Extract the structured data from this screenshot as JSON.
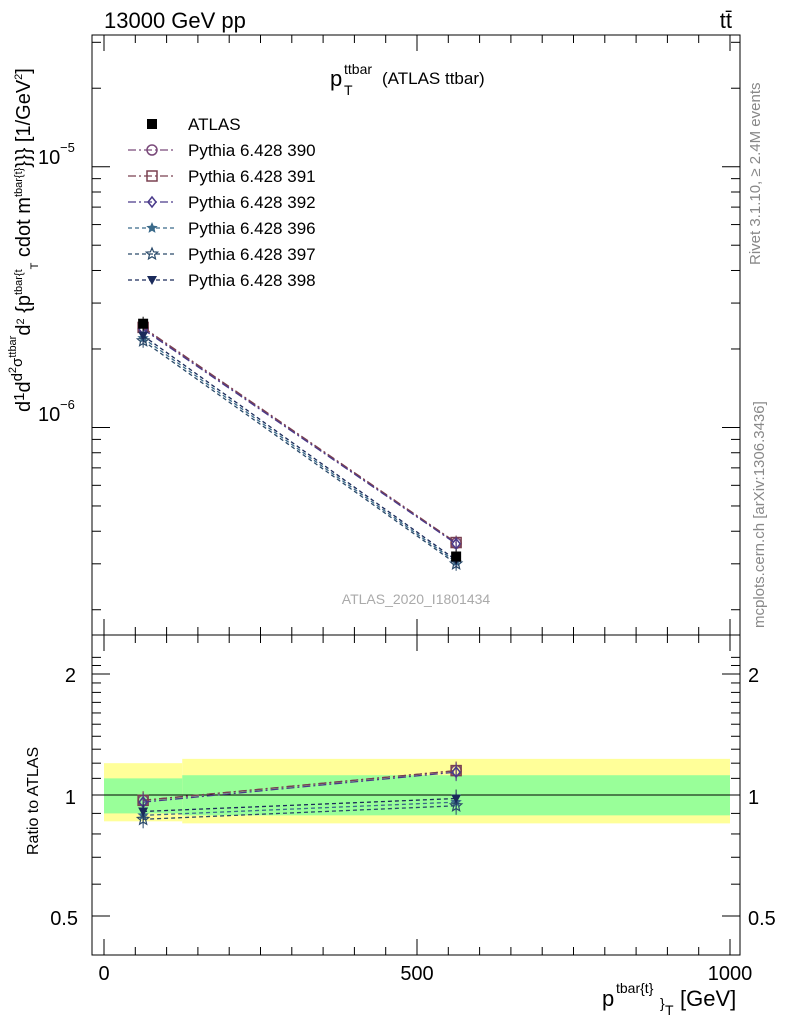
{
  "header": {
    "left": "13000 GeV pp",
    "right": "tt̄"
  },
  "side_labels": {
    "rivet": "Rivet 3.1.10, ≥ 2.4M events",
    "mcplots": "mcplots.cern.ch [arXiv:1306.3436]"
  },
  "main_plot": {
    "title_main": "p",
    "title_sup": "ttbar",
    "title_sub": "T",
    "title_rest": "(ATLAS ttbar)",
    "watermark": "ATLAS_2020_I1801434",
    "ylabel_text": "d1/σ d d²σ^ttbar / d² {p^tbar{t}_T cdot m^tbar{t}}} [1/GeV²]",
    "ytick_labels": [
      {
        "base": "10",
        "exp": "−5",
        "value": 1e-05
      },
      {
        "base": "10",
        "exp": "−6",
        "value": 1e-06
      }
    ]
  },
  "ratio_plot": {
    "ylabel": "Ratio to ATLAS",
    "ytick_labels": [
      "2",
      "1",
      "0.5"
    ]
  },
  "xaxis": {
    "tick_labels": [
      "0",
      "500",
      "1000"
    ],
    "label_main": "p",
    "label_sup": "tbar{t}",
    "label_sub": "}",
    "label_subsub": "T",
    "label_unit": "[GeV]"
  },
  "legend": [
    {
      "name": "ATLAS",
      "marker": "square-filled",
      "color": "#000000",
      "dash": ""
    },
    {
      "name": "Pythia 6.428 390",
      "marker": "circle-open",
      "color": "#7a4a7a",
      "dash": "8,3,2,3"
    },
    {
      "name": "Pythia 6.428 391",
      "marker": "square-open",
      "color": "#7a4050",
      "dash": "8,3,2,3"
    },
    {
      "name": "Pythia 6.428 392",
      "marker": "diamond-open",
      "color": "#4a3a8a",
      "dash": "8,3,2,3"
    },
    {
      "name": "Pythia 6.428 396",
      "marker": "star-filled",
      "color": "#3a6a8a",
      "dash": "4,3"
    },
    {
      "name": "Pythia 6.428 397",
      "marker": "star-open",
      "color": "#2a4a6a",
      "dash": "4,3"
    },
    {
      "name": "Pythia 6.428 398",
      "marker": "triangle-down-filled",
      "color": "#1a2a5a",
      "dash": "4,3"
    }
  ],
  "chart_data": {
    "type": "line",
    "x_scale": "linear",
    "xlim": [
      -20,
      1000
    ],
    "main_yscale": "log",
    "main_ylim": [
      1.6e-07,
      3.2e-05
    ],
    "ratio_ylim": [
      0.4,
      2.3
    ],
    "x": [
      62.5,
      562.5
    ],
    "bin_edges": [
      0,
      125,
      1000
    ],
    "series": [
      {
        "name": "ATLAS",
        "values": [
          2.5e-06,
          3.2e-07
        ],
        "ratio": [
          1.0,
          1.0
        ]
      },
      {
        "name": "Pythia 6.428 390",
        "values": [
          2.4e-06,
          3.6e-07
        ],
        "ratio": [
          0.97,
          1.15
        ]
      },
      {
        "name": "Pythia 6.428 391",
        "values": [
          2.42e-06,
          3.62e-07
        ],
        "ratio": [
          0.97,
          1.15
        ]
      },
      {
        "name": "Pythia 6.428 392",
        "values": [
          2.38e-06,
          3.58e-07
        ],
        "ratio": [
          0.96,
          1.14
        ]
      },
      {
        "name": "Pythia 6.428 396",
        "values": [
          2.2e-06,
          3.05e-07
        ],
        "ratio": [
          0.89,
          0.96
        ]
      },
      {
        "name": "Pythia 6.428 397",
        "values": [
          2.15e-06,
          3e-07
        ],
        "ratio": [
          0.87,
          0.94
        ]
      },
      {
        "name": "Pythia 6.428 398",
        "values": [
          2.25e-06,
          3.1e-07
        ],
        "ratio": [
          0.91,
          0.98
        ]
      }
    ],
    "ratio_bands": {
      "inner": [
        [
          0.9,
          1.1
        ],
        [
          0.89,
          1.12
        ]
      ],
      "outer": [
        [
          0.86,
          1.2
        ],
        [
          0.85,
          1.23
        ]
      ]
    }
  }
}
